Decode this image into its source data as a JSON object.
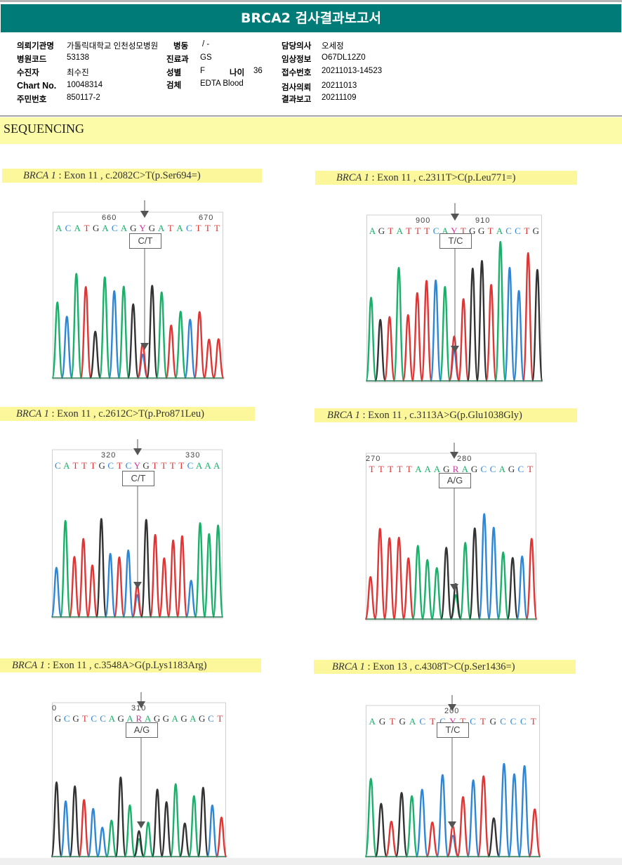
{
  "report": {
    "title": "BRCA2 검사결과보고서",
    "fields": {
      "institution_label": "의뢰기관명",
      "institution": "가톨릭대학교 인천성모병원",
      "ward_label": "병동",
      "ward": "/ -",
      "hospital_code_label": "병원코드",
      "hospital_code": "53138",
      "department_label": "진료과",
      "department": "GS",
      "patient_label": "수진자",
      "patient": "최수진",
      "sex_label": "성별",
      "sex": "F",
      "age_label": "나이",
      "age": "36",
      "chart_label": "Chart No.",
      "chart_no": "10048314",
      "specimen_label": "검체",
      "specimen": "EDTA Blood",
      "id_label": "주민번호",
      "id_no": "850117-2",
      "doctor_label": "담당의사",
      "doctor": "오세정",
      "clinical_label": "임상정보",
      "clinical": "O67DL12Z0",
      "receipt_label": "접수번호",
      "receipt_no": "20211013-14523",
      "request_label": "검사의뢰",
      "request_date": "20211013",
      "result_label": "결과보고",
      "result_date": "20211109"
    },
    "section_title": "SEQUENCING"
  },
  "colors": {
    "A": "#19b06a",
    "C": "#2e86d6",
    "G": "#333333",
    "T": "#e03535",
    "N": "#d0309a",
    "header": "#007b78",
    "highlight": "#fbf79a"
  },
  "variants": [
    {
      "gene": "BRCA 1",
      "desc": " : Exon 11 , c.2082C>T(p.Ser694=)",
      "genotype": "C/T",
      "pos_left": "660",
      "pos_right": "670",
      "sequence": "ACATGACAGYGATACTTT"
    },
    {
      "gene": "BRCA 1",
      "desc": " : Exon 11 , c.2311T>C(p.Leu771=)",
      "genotype": "T/C",
      "pos_left": "900",
      "pos_right": "910",
      "sequence": "AGTATTTCAYTGGTACCTG"
    },
    {
      "gene": "BRCA 1",
      "desc": " : Exon 11 , c.2612C>T(p.Pro871Leu)",
      "genotype": "C/T",
      "pos_left": "320",
      "pos_right": "330",
      "sequence": "CATTTGCTCYGTTTTCAAA"
    },
    {
      "gene": "BRCA 1",
      "desc": " : Exon 11 , c.3113A>G(p.Glu1038Gly)",
      "genotype": "A/G",
      "pos_left": "270",
      "pos_right": "280",
      "sequence": "TTTTTAAAGRAGCCAGCT"
    },
    {
      "gene": "BRCA 1",
      "desc": " : Exon 11 , c.3548A>G(p.Lys1183Arg)",
      "genotype": "A/G",
      "pos_left": "0",
      "pos_right": "310",
      "sequence": "GCGTCCAGARAGGAGAGCT"
    },
    {
      "gene": "BRCA 1",
      "desc": " : Exon 13 , c.4308T>C(p.Ser1436=)",
      "genotype": "T/C",
      "pos_left": "",
      "pos_right": "200",
      "sequence": "AGTGACTCYTCTGCCCT"
    }
  ]
}
